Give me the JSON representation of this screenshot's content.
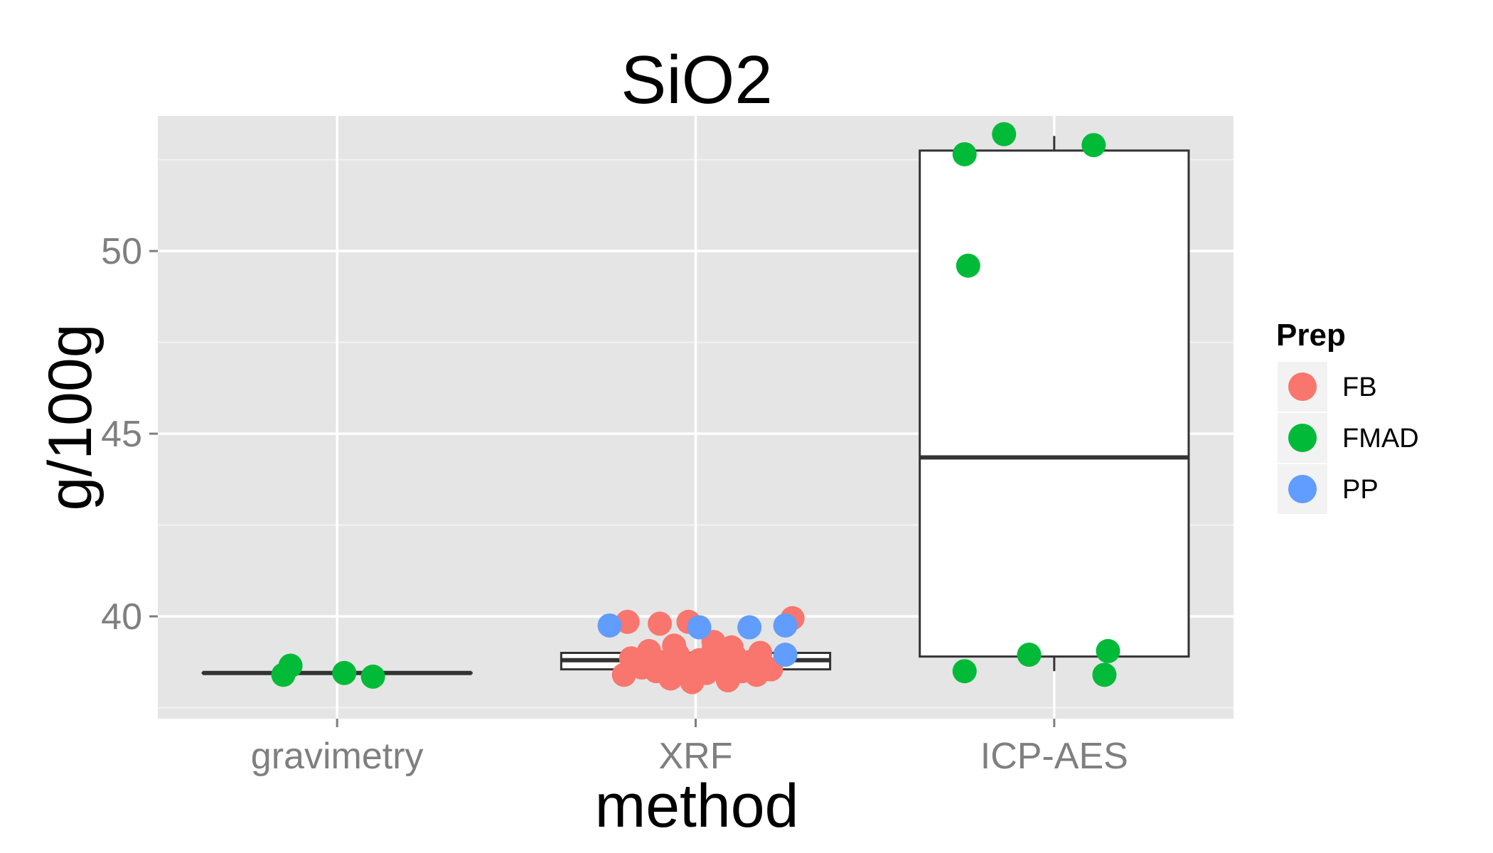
{
  "chart_data": {
    "type": "box",
    "title": "SiO2",
    "xlabel": "method",
    "ylabel": "g/100g",
    "categories": [
      "gravimetry",
      "XRF",
      "ICP-AES"
    ],
    "y_ticks": [
      40,
      45,
      50
    ],
    "y_tick_labels": [
      "40",
      "45",
      "50"
    ],
    "ylim": [
      37.2,
      53.7
    ],
    "grid": true,
    "legend": {
      "title": "Prep",
      "position": "right",
      "entries": [
        {
          "label": "FB",
          "color": "#F8766D"
        },
        {
          "label": "FMAD",
          "color": "#00BA38"
        },
        {
          "label": "PP",
          "color": "#619CFF"
        }
      ]
    },
    "boxes": [
      {
        "category": "gravimetry",
        "lower_whisker": 38.45,
        "q1": 38.45,
        "median": 38.45,
        "q3": 38.45,
        "upper_whisker": 38.45
      },
      {
        "category": "XRF",
        "lower_whisker": 38.55,
        "q1": 38.55,
        "median": 38.8,
        "q3": 39.0,
        "upper_whisker": 39.0
      },
      {
        "category": "ICP-AES",
        "lower_whisker": 38.5,
        "q1": 38.9,
        "median": 44.35,
        "q3": 52.75,
        "upper_whisker": 53.15
      }
    ],
    "points": [
      {
        "category": "gravimetry",
        "prep": "FMAD",
        "jitter": -0.15,
        "y": 38.4
      },
      {
        "category": "gravimetry",
        "prep": "FMAD",
        "jitter": -0.13,
        "y": 38.65
      },
      {
        "category": "gravimetry",
        "prep": "FMAD",
        "jitter": 0.02,
        "y": 38.45
      },
      {
        "category": "gravimetry",
        "prep": "FMAD",
        "jitter": 0.1,
        "y": 38.35
      },
      {
        "category": "XRF",
        "prep": "FB",
        "jitter": -0.2,
        "y": 38.4
      },
      {
        "category": "XRF",
        "prep": "FB",
        "jitter": -0.18,
        "y": 38.85
      },
      {
        "category": "XRF",
        "prep": "FB",
        "jitter": -0.15,
        "y": 38.6
      },
      {
        "category": "XRF",
        "prep": "FB",
        "jitter": -0.13,
        "y": 39.05
      },
      {
        "category": "XRF",
        "prep": "FB",
        "jitter": -0.11,
        "y": 38.5
      },
      {
        "category": "XRF",
        "prep": "FB",
        "jitter": -0.09,
        "y": 38.75
      },
      {
        "category": "XRF",
        "prep": "FB",
        "jitter": -0.07,
        "y": 38.3
      },
      {
        "category": "XRF",
        "prep": "FB",
        "jitter": -0.05,
        "y": 38.95
      },
      {
        "category": "XRF",
        "prep": "FB",
        "jitter": -0.03,
        "y": 38.55
      },
      {
        "category": "XRF",
        "prep": "FB",
        "jitter": -0.01,
        "y": 38.2
      },
      {
        "category": "XRF",
        "prep": "FB",
        "jitter": 0.01,
        "y": 38.8
      },
      {
        "category": "XRF",
        "prep": "FB",
        "jitter": 0.03,
        "y": 38.45
      },
      {
        "category": "XRF",
        "prep": "FB",
        "jitter": 0.05,
        "y": 39.1
      },
      {
        "category": "XRF",
        "prep": "FB",
        "jitter": 0.07,
        "y": 38.65
      },
      {
        "category": "XRF",
        "prep": "FB",
        "jitter": 0.09,
        "y": 38.25
      },
      {
        "category": "XRF",
        "prep": "FB",
        "jitter": 0.11,
        "y": 38.9
      },
      {
        "category": "XRF",
        "prep": "FB",
        "jitter": 0.13,
        "y": 38.5
      },
      {
        "category": "XRF",
        "prep": "FB",
        "jitter": 0.15,
        "y": 38.75
      },
      {
        "category": "XRF",
        "prep": "FB",
        "jitter": 0.17,
        "y": 38.4
      },
      {
        "category": "XRF",
        "prep": "FB",
        "jitter": 0.19,
        "y": 38.65
      },
      {
        "category": "XRF",
        "prep": "FB",
        "jitter": 0.21,
        "y": 38.55
      },
      {
        "category": "XRF",
        "prep": "FB",
        "jitter": -0.19,
        "y": 39.85
      },
      {
        "category": "XRF",
        "prep": "FB",
        "jitter": -0.1,
        "y": 39.8
      },
      {
        "category": "XRF",
        "prep": "FB",
        "jitter": -0.02,
        "y": 39.85
      },
      {
        "category": "XRF",
        "prep": "FB",
        "jitter": 0.05,
        "y": 39.3
      },
      {
        "category": "XRF",
        "prep": "FB",
        "jitter": 0.18,
        "y": 39.0
      },
      {
        "category": "XRF",
        "prep": "FB",
        "jitter": 0.27,
        "y": 39.95
      },
      {
        "category": "XRF",
        "prep": "FB",
        "jitter": 0.1,
        "y": 39.15
      },
      {
        "category": "XRF",
        "prep": "FB",
        "jitter": -0.06,
        "y": 39.2
      },
      {
        "category": "XRF",
        "prep": "PP",
        "jitter": -0.24,
        "y": 39.75
      },
      {
        "category": "XRF",
        "prep": "PP",
        "jitter": 0.01,
        "y": 39.7
      },
      {
        "category": "XRF",
        "prep": "PP",
        "jitter": 0.15,
        "y": 39.7
      },
      {
        "category": "XRF",
        "prep": "PP",
        "jitter": 0.25,
        "y": 39.75
      },
      {
        "category": "XRF",
        "prep": "PP",
        "jitter": 0.25,
        "y": 38.95
      },
      {
        "category": "ICP-AES",
        "prep": "FMAD",
        "jitter": -0.25,
        "y": 52.65
      },
      {
        "category": "ICP-AES",
        "prep": "FMAD",
        "jitter": -0.14,
        "y": 53.2
      },
      {
        "category": "ICP-AES",
        "prep": "FMAD",
        "jitter": 0.11,
        "y": 52.9
      },
      {
        "category": "ICP-AES",
        "prep": "FMAD",
        "jitter": -0.24,
        "y": 49.6
      },
      {
        "category": "ICP-AES",
        "prep": "FMAD",
        "jitter": -0.25,
        "y": 38.5
      },
      {
        "category": "ICP-AES",
        "prep": "FMAD",
        "jitter": -0.07,
        "y": 38.95
      },
      {
        "category": "ICP-AES",
        "prep": "FMAD",
        "jitter": 0.15,
        "y": 39.05
      },
      {
        "category": "ICP-AES",
        "prep": "FMAD",
        "jitter": 0.14,
        "y": 38.4
      }
    ]
  }
}
